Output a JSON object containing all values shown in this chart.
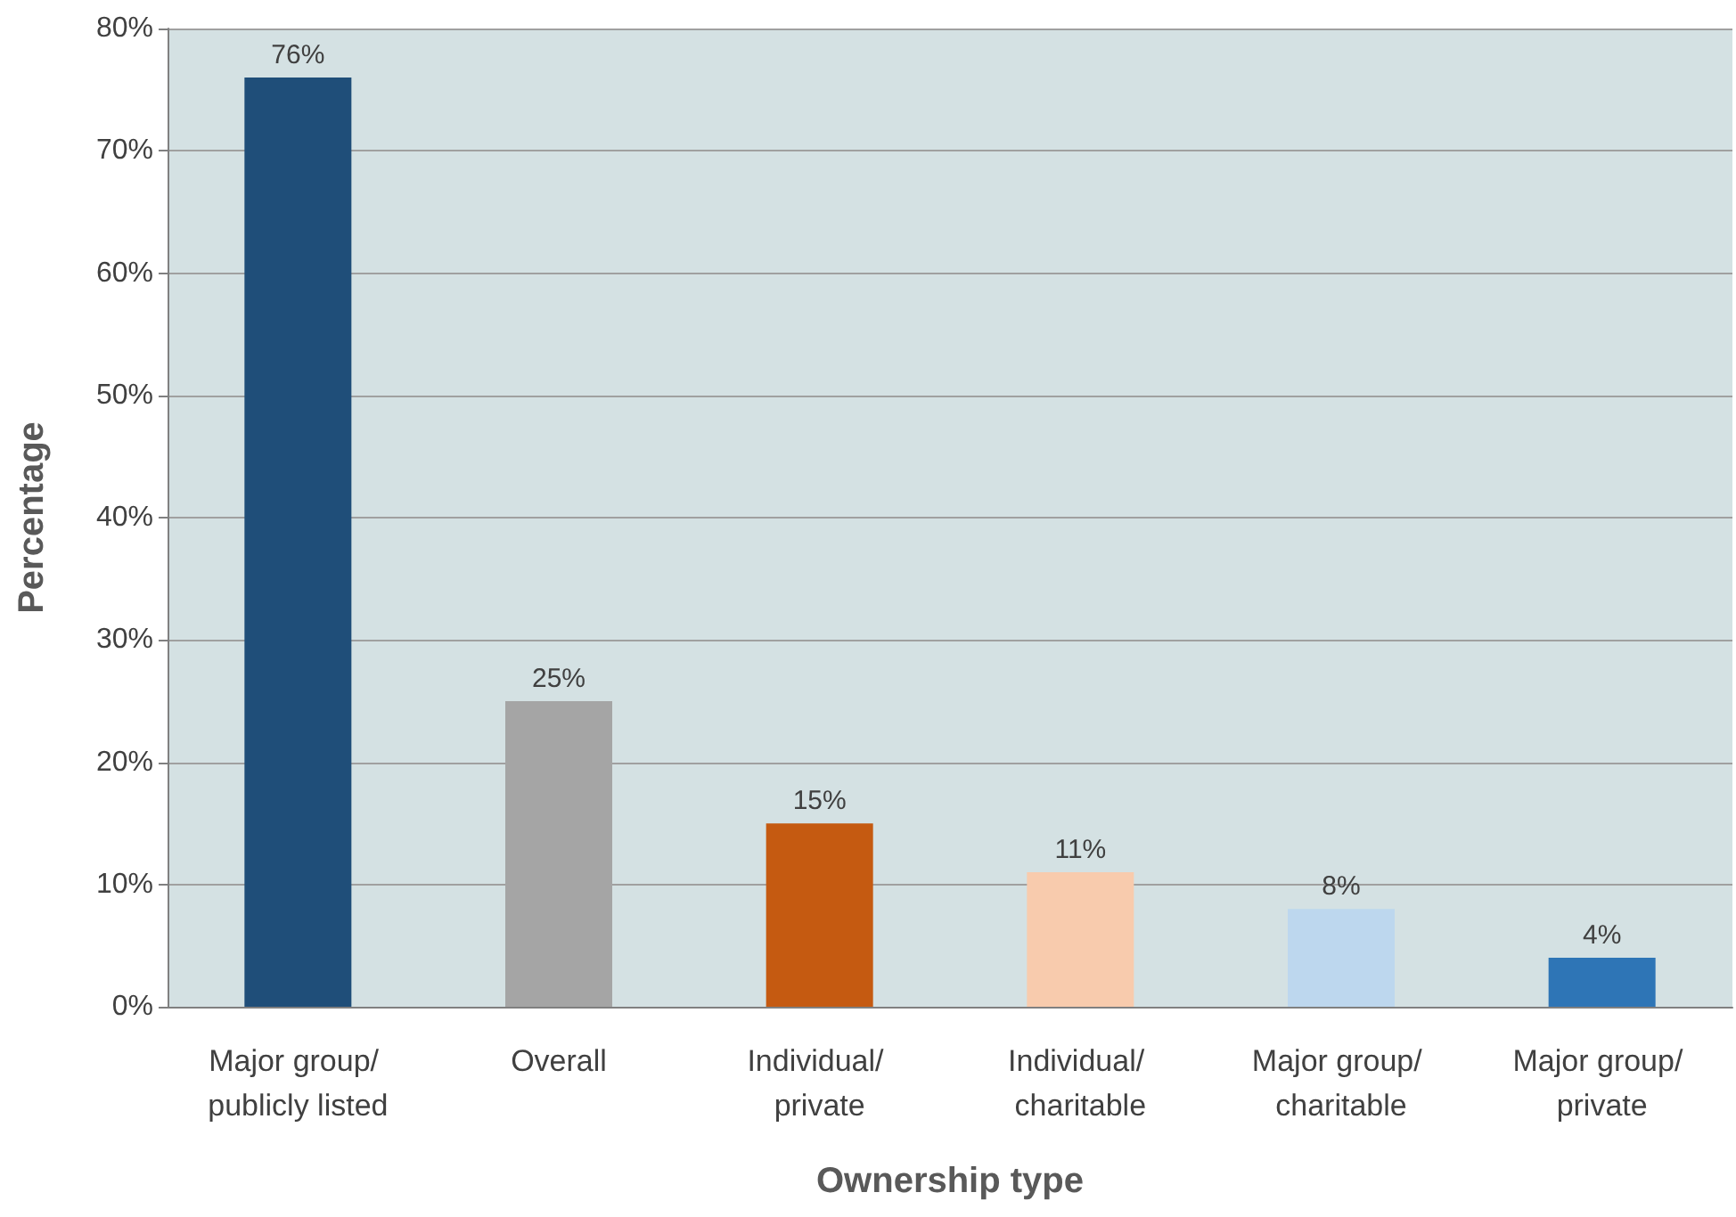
{
  "chart_data": {
    "type": "bar",
    "xlabel": "Ownership type",
    "ylabel": "Percentage",
    "categories": [
      "Major group/ publicly listed",
      "Overall",
      "Individual/ private",
      "Individual/ charitable",
      "Major group/ charitable",
      "Major group/ private"
    ],
    "values": [
      76,
      25,
      15,
      11,
      8,
      4
    ],
    "colors": [
      "#1f4e79",
      "#a5a5a5",
      "#c55a11",
      "#f8cbad",
      "#bdd7ee",
      "#2e75b6"
    ],
    "value_labels": [
      "76%",
      "25%",
      "15%",
      "11%",
      "8%",
      "4%"
    ],
    "ylim": [
      0,
      80
    ],
    "yticks": [
      {
        "value": 0,
        "label": "0%"
      },
      {
        "value": 10,
        "label": "10%"
      },
      {
        "value": 20,
        "label": "20%"
      },
      {
        "value": 30,
        "label": "30%"
      },
      {
        "value": 40,
        "label": "40%"
      },
      {
        "value": 50,
        "label": "50%"
      },
      {
        "value": 60,
        "label": "60%"
      },
      {
        "value": 70,
        "label": "70%"
      },
      {
        "value": 80,
        "label": "80%"
      }
    ],
    "grid": "y"
  }
}
